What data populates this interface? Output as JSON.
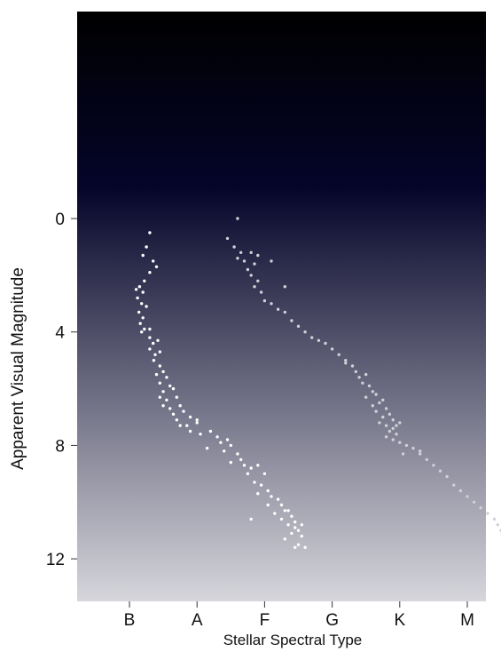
{
  "chart_data": {
    "type": "scatter",
    "title": "",
    "xlabel": "Stellar Spectral Type",
    "ylabel": "Apparent Visual Magnitude",
    "x_categories": [
      "B",
      "A",
      "F",
      "G",
      "K",
      "M"
    ],
    "y_ticks": [
      0,
      4,
      8,
      12
    ],
    "ylim": [
      13.5,
      -7.3
    ],
    "y_inverted": true,
    "grid": false,
    "legend": "none",
    "background": {
      "top": "#000000",
      "middle": "#05052a",
      "bottom": "#d6d6dc"
    },
    "series": [
      {
        "name": "",
        "color": "#ffffff",
        "comment_free": true,
        "points": [
          [
            0.3,
            0.5
          ],
          [
            0.25,
            1.0
          ],
          [
            0.2,
            1.3
          ],
          [
            0.35,
            1.5
          ],
          [
            0.4,
            1.7
          ],
          [
            0.3,
            1.9
          ],
          [
            0.22,
            2.2
          ],
          [
            0.15,
            2.4
          ],
          [
            0.1,
            2.5
          ],
          [
            0.2,
            2.6
          ],
          [
            0.12,
            2.8
          ],
          [
            0.18,
            3.0
          ],
          [
            0.25,
            3.1
          ],
          [
            0.14,
            3.3
          ],
          [
            0.2,
            3.5
          ],
          [
            0.16,
            3.7
          ],
          [
            0.22,
            3.9
          ],
          [
            0.18,
            4.0
          ],
          [
            0.3,
            3.9
          ],
          [
            0.3,
            4.2
          ],
          [
            0.35,
            4.4
          ],
          [
            0.42,
            4.3
          ],
          [
            0.3,
            4.6
          ],
          [
            0.38,
            4.8
          ],
          [
            0.45,
            4.7
          ],
          [
            0.36,
            5.0
          ],
          [
            0.45,
            5.2
          ],
          [
            0.4,
            5.5
          ],
          [
            0.5,
            5.4
          ],
          [
            0.55,
            5.6
          ],
          [
            0.45,
            5.8
          ],
          [
            0.6,
            5.9
          ],
          [
            0.5,
            6.1
          ],
          [
            0.65,
            6.0
          ],
          [
            0.45,
            6.3
          ],
          [
            0.55,
            6.4
          ],
          [
            0.7,
            6.3
          ],
          [
            0.5,
            6.6
          ],
          [
            0.6,
            6.7
          ],
          [
            0.75,
            6.6
          ],
          [
            0.65,
            6.9
          ],
          [
            0.8,
            6.8
          ],
          [
            0.7,
            7.1
          ],
          [
            0.9,
            7.0
          ],
          [
            0.75,
            7.3
          ],
          [
            0.85,
            7.3
          ],
          [
            1.0,
            7.2
          ],
          [
            0.9,
            7.5
          ],
          [
            1.05,
            7.6
          ],
          [
            1.2,
            7.5
          ],
          [
            1.3,
            7.7
          ],
          [
            1.35,
            7.9
          ],
          [
            1.45,
            7.8
          ],
          [
            1.15,
            8.1
          ],
          [
            1.5,
            8.0
          ],
          [
            1.4,
            8.2
          ],
          [
            1.6,
            8.3
          ],
          [
            1.65,
            8.5
          ],
          [
            1.5,
            8.6
          ],
          [
            1.7,
            8.7
          ],
          [
            1.8,
            8.8
          ],
          [
            1.9,
            8.7
          ],
          [
            1.75,
            9.0
          ],
          [
            1.85,
            9.3
          ],
          [
            1.95,
            9.4
          ],
          [
            2.05,
            9.6
          ],
          [
            1.9,
            9.7
          ],
          [
            2.1,
            9.8
          ],
          [
            2.2,
            9.9
          ],
          [
            2.05,
            10.1
          ],
          [
            2.25,
            10.1
          ],
          [
            2.15,
            10.4
          ],
          [
            2.3,
            10.3
          ],
          [
            2.25,
            10.6
          ],
          [
            2.4,
            10.5
          ],
          [
            2.35,
            10.8
          ],
          [
            2.45,
            10.9
          ],
          [
            2.4,
            11.1
          ],
          [
            2.3,
            11.3
          ],
          [
            2.55,
            11.2
          ],
          [
            2.5,
            11.5
          ],
          [
            2.6,
            11.6
          ],
          [
            2.45,
            11.6
          ],
          [
            1.8,
            10.6
          ],
          [
            1.0,
            7.1
          ],
          [
            2.0,
            9.0
          ],
          [
            2.35,
            10.3
          ],
          [
            2.45,
            10.7
          ],
          [
            2.5,
            11.0
          ],
          [
            2.55,
            10.8
          ]
        ]
      },
      {
        "name": "",
        "color": "#d0d0d8",
        "points": [
          [
            1.6,
            0.0
          ],
          [
            1.45,
            0.7
          ],
          [
            1.55,
            1.0
          ],
          [
            1.65,
            1.2
          ],
          [
            1.8,
            1.2
          ],
          [
            1.9,
            1.3
          ],
          [
            1.6,
            1.4
          ],
          [
            1.7,
            1.5
          ],
          [
            1.85,
            1.6
          ],
          [
            1.75,
            1.8
          ],
          [
            2.1,
            1.5
          ],
          [
            1.8,
            2.0
          ],
          [
            1.9,
            2.2
          ],
          [
            1.85,
            2.4
          ],
          [
            2.3,
            2.4
          ],
          [
            1.95,
            2.6
          ],
          [
            2.0,
            2.9
          ],
          [
            2.1,
            3.0
          ],
          [
            2.2,
            3.2
          ],
          [
            2.3,
            3.3
          ],
          [
            2.4,
            3.6
          ],
          [
            2.5,
            3.8
          ],
          [
            2.6,
            4.0
          ],
          [
            2.7,
            4.2
          ],
          [
            2.8,
            4.3
          ],
          [
            2.9,
            4.4
          ],
          [
            3.0,
            4.6
          ],
          [
            3.1,
            4.8
          ],
          [
            3.2,
            5.0
          ],
          [
            3.3,
            5.2
          ],
          [
            3.35,
            5.4
          ],
          [
            3.4,
            5.6
          ],
          [
            3.45,
            5.8
          ],
          [
            3.55,
            5.9
          ],
          [
            3.6,
            6.1
          ],
          [
            3.65,
            6.2
          ],
          [
            3.5,
            6.3
          ],
          [
            3.7,
            6.5
          ],
          [
            3.6,
            6.6
          ],
          [
            3.8,
            6.7
          ],
          [
            3.65,
            6.8
          ],
          [
            3.85,
            6.9
          ],
          [
            3.75,
            7.0
          ],
          [
            3.9,
            7.1
          ],
          [
            3.7,
            7.2
          ],
          [
            3.8,
            7.3
          ],
          [
            3.9,
            7.4
          ],
          [
            3.85,
            7.5
          ],
          [
            3.95,
            7.6
          ],
          [
            3.8,
            7.7
          ],
          [
            3.9,
            7.8
          ],
          [
            4.0,
            7.9
          ],
          [
            4.1,
            8.0
          ],
          [
            4.2,
            8.1
          ],
          [
            4.3,
            8.2
          ],
          [
            4.05,
            8.3
          ],
          [
            4.4,
            8.5
          ],
          [
            4.5,
            8.7
          ],
          [
            4.6,
            8.9
          ],
          [
            4.7,
            9.1
          ],
          [
            4.8,
            9.4
          ],
          [
            4.9,
            9.6
          ],
          [
            5.0,
            9.8
          ],
          [
            5.1,
            10.0
          ],
          [
            5.2,
            10.2
          ],
          [
            5.3,
            10.4
          ],
          [
            5.4,
            10.6
          ],
          [
            5.45,
            10.8
          ],
          [
            5.5,
            11.0
          ],
          [
            3.5,
            5.5
          ],
          [
            3.2,
            5.1
          ],
          [
            3.95,
            7.3
          ],
          [
            4.0,
            7.2
          ],
          [
            3.75,
            6.4
          ],
          [
            4.3,
            8.3
          ]
        ]
      }
    ]
  }
}
